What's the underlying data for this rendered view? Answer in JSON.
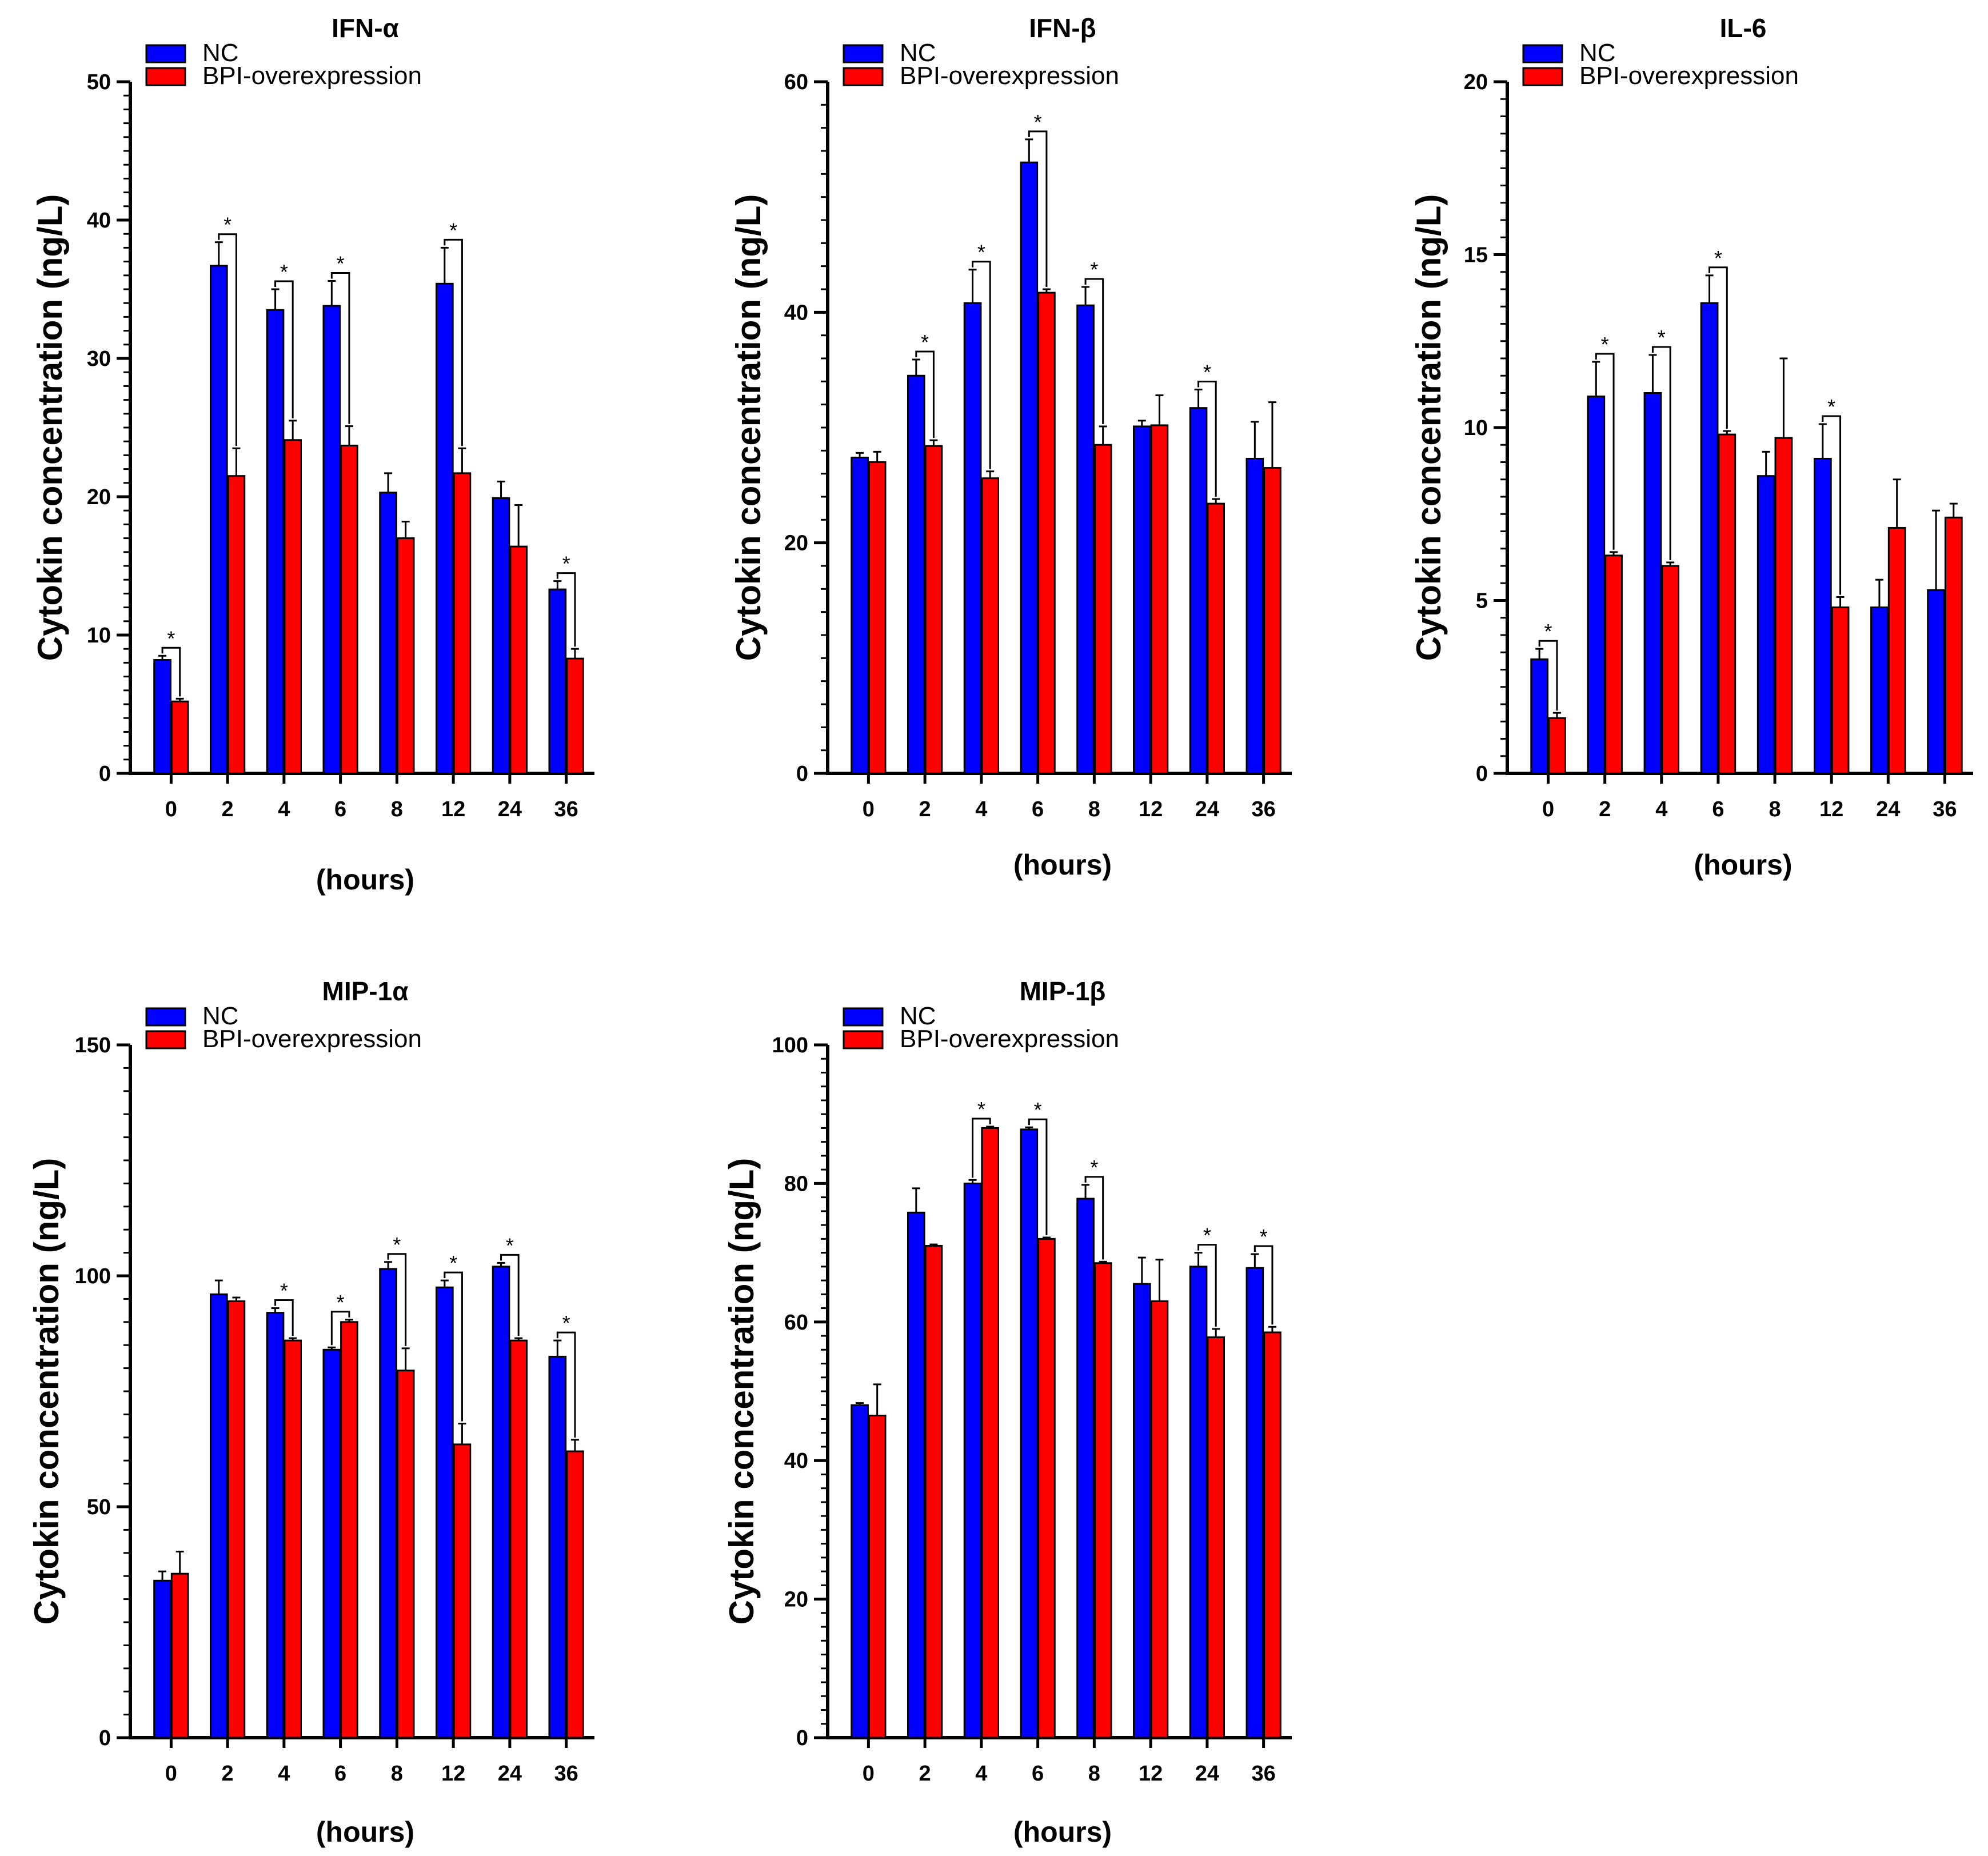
{
  "colors": {
    "nc": "#0000ff",
    "bpi": "#ff0000",
    "axis": "#000000"
  },
  "legend": [
    "NC",
    "BPI-overexpression"
  ],
  "chart_data": [
    {
      "type": "bar",
      "title": "IFN-α",
      "xlabel": "(hours)",
      "ylabel": "Cytokin concentration (ng/L)",
      "categories": [
        "0",
        "2",
        "4",
        "6",
        "8",
        "12",
        "24",
        "36"
      ],
      "ylim": [
        0,
        50
      ],
      "yticks": [
        "0",
        "10",
        "20",
        "30",
        "40",
        "50"
      ],
      "series": [
        {
          "name": "NC",
          "values": [
            8.2,
            36.7,
            33.5,
            33.8,
            20.3,
            35.4,
            19.9,
            13.3
          ],
          "errors": [
            0.3,
            1.7,
            1.5,
            1.8,
            1.4,
            2.6,
            1.2,
            0.6
          ]
        },
        {
          "name": "BPI-overexpression",
          "values": [
            5.2,
            21.5,
            24.1,
            23.7,
            17.0,
            21.7,
            16.4,
            8.3
          ],
          "errors": [
            0.2,
            2.0,
            1.4,
            1.4,
            1.2,
            1.8,
            3.0,
            0.7
          ]
        }
      ],
      "significance": [
        {
          "index": 0,
          "label": "*"
        },
        {
          "index": 1,
          "label": "*"
        },
        {
          "index": 2,
          "label": "*"
        },
        {
          "index": 3,
          "label": "*"
        },
        {
          "index": 5,
          "label": "*"
        },
        {
          "index": 7,
          "label": "*"
        }
      ]
    },
    {
      "type": "bar",
      "title": "IFN-β",
      "xlabel": "(hours)",
      "ylabel": "Cytokin concentration (ng/L)",
      "categories": [
        "0",
        "2",
        "4",
        "6",
        "8",
        "12",
        "24",
        "36"
      ],
      "ylim": [
        0,
        60
      ],
      "yticks": [
        "0",
        "20",
        "40",
        "60"
      ],
      "series": [
        {
          "name": "NC",
          "values": [
            27.4,
            34.5,
            40.8,
            53.0,
            40.6,
            30.1,
            31.7,
            27.3
          ],
          "errors": [
            0.4,
            1.4,
            2.9,
            2.0,
            1.6,
            0.5,
            1.6,
            3.2
          ]
        },
        {
          "name": "BPI-overexpression",
          "values": [
            27.0,
            28.4,
            25.6,
            41.7,
            28.5,
            30.2,
            23.4,
            26.5
          ],
          "errors": [
            0.9,
            0.5,
            0.6,
            0.3,
            1.6,
            2.6,
            0.4,
            5.7
          ]
        }
      ],
      "significance": [
        {
          "index": 1,
          "label": "*"
        },
        {
          "index": 2,
          "label": "*"
        },
        {
          "index": 3,
          "label": "*"
        },
        {
          "index": 4,
          "label": "*"
        },
        {
          "index": 6,
          "label": "*"
        }
      ]
    },
    {
      "type": "bar",
      "title": "IL-6",
      "xlabel": "(hours)",
      "ylabel": "Cytokin concentration (ng/L)",
      "categories": [
        "0",
        "2",
        "4",
        "6",
        "8",
        "12",
        "24",
        "36"
      ],
      "ylim": [
        0,
        20
      ],
      "yticks": [
        "0",
        "5",
        "10",
        "15",
        "20"
      ],
      "series": [
        {
          "name": "NC",
          "values": [
            3.3,
            10.9,
            11.0,
            13.6,
            8.6,
            9.1,
            4.8,
            5.3
          ],
          "errors": [
            0.3,
            1.0,
            1.1,
            0.8,
            0.7,
            1.0,
            0.8,
            2.3
          ]
        },
        {
          "name": "BPI-overexpression",
          "values": [
            1.6,
            6.3,
            6.0,
            9.8,
            9.7,
            4.8,
            7.1,
            7.4
          ],
          "errors": [
            0.15,
            0.1,
            0.1,
            0.1,
            2.3,
            0.3,
            1.4,
            0.4
          ]
        }
      ],
      "significance": [
        {
          "index": 0,
          "label": "*"
        },
        {
          "index": 1,
          "label": "*"
        },
        {
          "index": 2,
          "label": "*"
        },
        {
          "index": 3,
          "label": "*"
        },
        {
          "index": 5,
          "label": "*"
        }
      ]
    },
    {
      "type": "bar",
      "title": "MIP-1α",
      "xlabel": "(hours)",
      "ylabel": "Cytokin concentration (ng/L)",
      "categories": [
        "0",
        "2",
        "4",
        "6",
        "8",
        "12",
        "24",
        "36"
      ],
      "ylim": [
        0,
        150
      ],
      "yticks": [
        "0",
        "50",
        "100",
        "150"
      ],
      "series": [
        {
          "name": "NC",
          "values": [
            34.0,
            96.0,
            92.0,
            84.0,
            101.5,
            97.5,
            102.0,
            82.5
          ],
          "errors": [
            2.0,
            3.0,
            1.0,
            0.5,
            1.5,
            1.5,
            0.8,
            3.5
          ]
        },
        {
          "name": "BPI-overexpression",
          "values": [
            35.5,
            94.5,
            86.0,
            90.0,
            79.5,
            63.5,
            86.0,
            62.0
          ],
          "errors": [
            4.8,
            0.8,
            0.5,
            0.5,
            4.8,
            4.5,
            0.5,
            2.5
          ]
        }
      ],
      "significance": [
        {
          "index": 2,
          "label": "*"
        },
        {
          "index": 3,
          "label": "*"
        },
        {
          "index": 4,
          "label": "*"
        },
        {
          "index": 5,
          "label": "*"
        },
        {
          "index": 6,
          "label": "*"
        },
        {
          "index": 7,
          "label": "*"
        }
      ]
    },
    {
      "type": "bar",
      "title": "MIP-1β",
      "xlabel": "(hours)",
      "ylabel": "Cytokin concentration (ng/L)",
      "categories": [
        "0",
        "2",
        "4",
        "6",
        "8",
        "12",
        "24",
        "36"
      ],
      "ylim": [
        0,
        100
      ],
      "yticks": [
        "0",
        "20",
        "40",
        "60",
        "80",
        "100"
      ],
      "series": [
        {
          "name": "NC",
          "values": [
            48.0,
            75.8,
            80.0,
            87.8,
            77.8,
            65.5,
            68.0,
            67.8
          ],
          "errors": [
            0.3,
            3.5,
            0.5,
            0.3,
            2.0,
            3.8,
            2.0,
            2.0
          ]
        },
        {
          "name": "BPI-overexpression",
          "values": [
            46.5,
            71.0,
            88.0,
            72.0,
            68.5,
            63.0,
            57.8,
            58.5
          ],
          "errors": [
            4.5,
            0.2,
            0.2,
            0.2,
            0.2,
            6.0,
            1.2,
            0.8
          ]
        }
      ],
      "significance": [
        {
          "index": 2,
          "label": "*"
        },
        {
          "index": 3,
          "label": "*"
        },
        {
          "index": 4,
          "label": "*"
        },
        {
          "index": 6,
          "label": "*"
        },
        {
          "index": 7,
          "label": "*"
        }
      ]
    }
  ]
}
